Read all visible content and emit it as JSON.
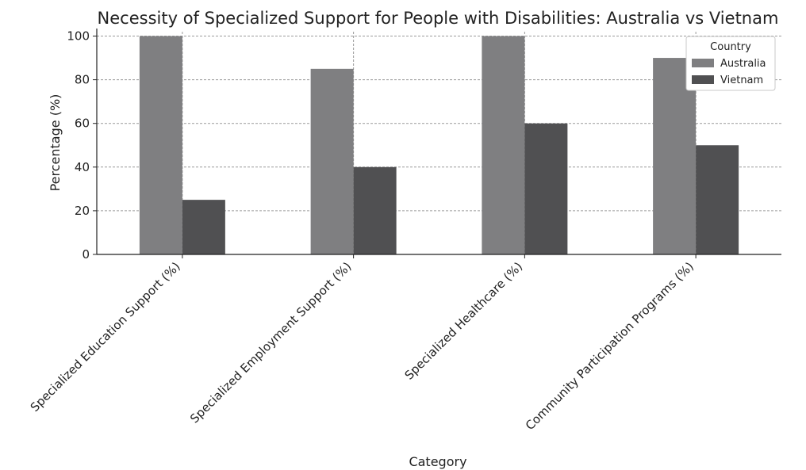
{
  "chart_data": {
    "type": "bar",
    "title": "Necessity of Specialized Support for People with Disabilities: Australia vs Vietnam",
    "xlabel": "Category",
    "ylabel": "Percentage (%)",
    "categories": [
      "Specialized Education Support (%)",
      "Specialized Employment Support (%)",
      "Specialized Healthcare (%)",
      "Community Participation Programs (%)"
    ],
    "series": [
      {
        "name": "Australia",
        "values": [
          100,
          85,
          100,
          90
        ],
        "color": "#7f7f81"
      },
      {
        "name": "Vietnam",
        "values": [
          25,
          40,
          60,
          50
        ],
        "color": "#505052"
      }
    ],
    "ylim": [
      0,
      102
    ],
    "yticks": [
      0,
      20,
      40,
      60,
      80,
      100
    ],
    "grid": true,
    "legend": {
      "title": "Country",
      "position": "top-right"
    }
  }
}
